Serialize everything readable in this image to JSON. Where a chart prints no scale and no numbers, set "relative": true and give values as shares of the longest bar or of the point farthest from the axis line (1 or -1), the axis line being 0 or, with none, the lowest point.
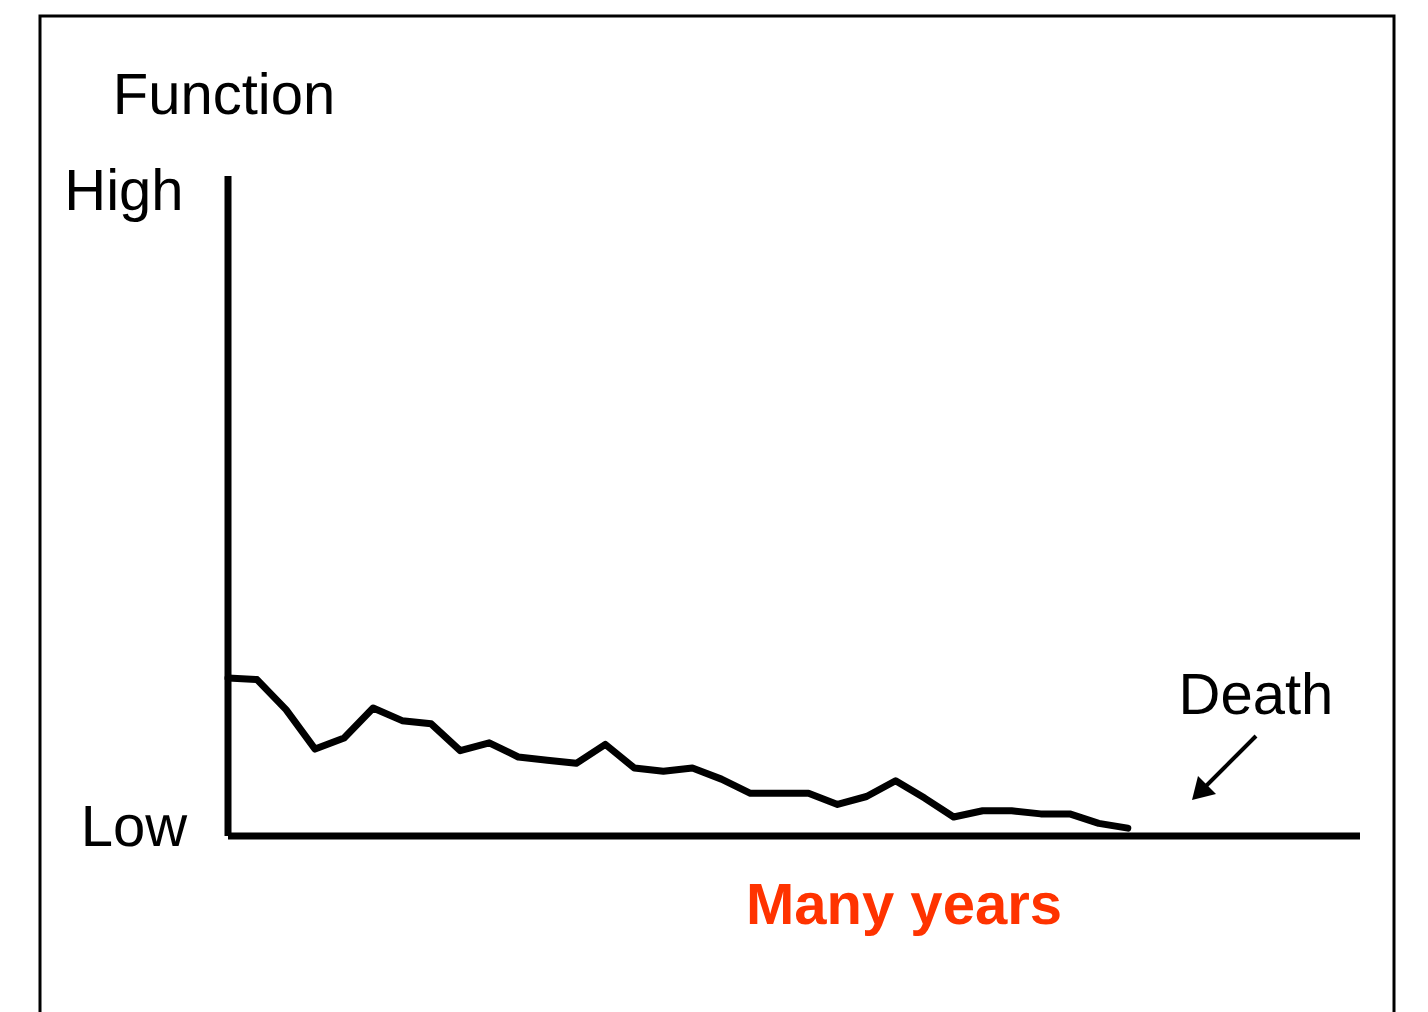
{
  "chart_data": {
    "type": "line",
    "relative": true,
    "xlabel": "Many years",
    "annotations": [
      "Function",
      "High",
      "Low",
      "Death"
    ],
    "categories": [
      null,
      null,
      null,
      null,
      null,
      null,
      null,
      null,
      null,
      null,
      null,
      null,
      null,
      null,
      null,
      null,
      null,
      null,
      null,
      null,
      null,
      null,
      null,
      null,
      null,
      null,
      null,
      null,
      null,
      null,
      null,
      null,
      null,
      null,
      null,
      null,
      null,
      null,
      null,
      null
    ],
    "series": [
      {
        "color": "#000000",
        "values": [
          1.0,
          0.99,
          0.8,
          0.55,
          0.62,
          0.81,
          0.73,
          0.71,
          0.54,
          0.59,
          0.5,
          0.48,
          0.46,
          0.58,
          0.43,
          0.41,
          0.43,
          0.36,
          0.27,
          0.27,
          0.27,
          0.2,
          0.25,
          0.35,
          0.24,
          0.12,
          0.16,
          0.16,
          0.14,
          0.14,
          0.08,
          0.05,
          null,
          null,
          null,
          null,
          null,
          null,
          null,
          null
        ]
      }
    ],
    "line_style": "solid"
  }
}
